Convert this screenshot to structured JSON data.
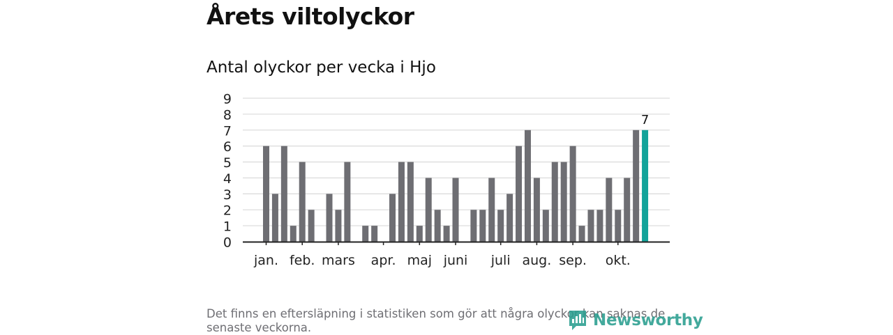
{
  "title": "Årets viltolyckor",
  "subtitle": "Antal olyckor per vecka i Hjo",
  "footnote": "Det finns en eftersläpning i statistiken som gör att några olyckor kan saknas de senaste veckorna.",
  "brand": "Newsworthy",
  "colors": {
    "bar": "#6e6e73",
    "highlight": "#12a39a",
    "grid": "#dddddd",
    "axis": "#222222",
    "brand": "#2a9e8f"
  },
  "chart_data": {
    "type": "bar",
    "ylim": [
      0,
      9
    ],
    "yticks": [
      0,
      1,
      2,
      3,
      4,
      5,
      6,
      7,
      8,
      9
    ],
    "grid": true,
    "values": [
      6,
      3,
      6,
      1,
      5,
      2,
      0,
      3,
      2,
      5,
      0,
      1,
      1,
      0,
      3,
      5,
      5,
      1,
      4,
      2,
      1,
      4,
      0,
      2,
      2,
      4,
      2,
      3,
      6,
      7,
      4,
      2,
      5,
      5,
      6,
      1,
      2,
      2,
      4,
      2,
      4,
      7,
      7
    ],
    "highlight_index": 42,
    "highlight_label": "7",
    "month_labels": [
      {
        "label": "jan.",
        "at_bar": 0
      },
      {
        "label": "feb.",
        "at_bar": 4
      },
      {
        "label": "mars",
        "at_bar": 8
      },
      {
        "label": "apr.",
        "at_bar": 13
      },
      {
        "label": "maj",
        "at_bar": 17
      },
      {
        "label": "juni",
        "at_bar": 21
      },
      {
        "label": "juli",
        "at_bar": 26
      },
      {
        "label": "aug.",
        "at_bar": 30
      },
      {
        "label": "sep.",
        "at_bar": 34
      },
      {
        "label": "okt.",
        "at_bar": 39
      }
    ]
  }
}
